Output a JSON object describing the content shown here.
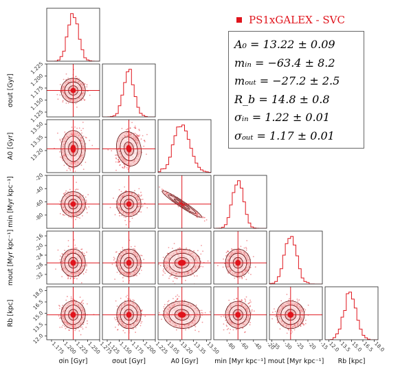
{
  "chart_data": {
    "type": "scatter",
    "subtype": "corner-plot",
    "legend": {
      "label": "PS1xGALEX - SVC",
      "color": "#e0141c",
      "placement": "top-right"
    },
    "results": [
      "A₀ = 13.22 ± 0.09",
      "mᵢₙ = −63.4 ± 8.2",
      "mₒᵤₜ = −27.2 ± 2.5",
      "R_b = 14.8 ± 0.8",
      "σᵢₙ = 1.22 ± 0.01",
      "σₒᵤₜ = 1.17 ± 0.01"
    ],
    "parameters": [
      {
        "name": "sigma_in",
        "xlabel": "σin [Gyr]",
        "ylabel": "",
        "range": [
          1.165,
          1.275
        ],
        "best": 1.22,
        "sd": 0.011,
        "ticks": [
          "1.175",
          "1.200",
          "1.225",
          "1.250",
          "1.275"
        ]
      },
      {
        "name": "sigma_out",
        "xlabel": "σout [Gyr]",
        "ylabel": "σout [Gyr]",
        "range": [
          1.115,
          1.225
        ],
        "best": 1.17,
        "sd": 0.011,
        "ticks": [
          "1.125",
          "1.150",
          "1.175",
          "1.200",
          "1.225"
        ]
      },
      {
        "name": "A0",
        "xlabel": "A0 [Gyr]",
        "ylabel": "A0 [Gyr]",
        "range": [
          12.95,
          13.55
        ],
        "best": 13.22,
        "sd": 0.09,
        "ticks": [
          "13.05",
          "13.20",
          "13.35",
          "13.50"
        ]
      },
      {
        "name": "m_in",
        "xlabel": "min [Myr kpc⁻¹]",
        "ylabel": "min [Myr kpc⁻¹]",
        "range": [
          -100,
          -20
        ],
        "best": -63.4,
        "sd": 8.2,
        "ticks": [
          "-80",
          "-60",
          "-40",
          "-20"
        ]
      },
      {
        "name": "m_out",
        "xlabel": "mout [Myr kpc⁻¹]",
        "ylabel": "mout [Myr kpc⁻¹]",
        "range": [
          -36,
          -14
        ],
        "best": -27.2,
        "sd": 2.5,
        "ticks": [
          "-35",
          "-30",
          "-25",
          "-20",
          "-15"
        ]
      },
      {
        "name": "R_b",
        "xlabel": "Rb [kpc]",
        "ylabel": "Rb [kpc]",
        "range": [
          11.5,
          18.5
        ],
        "best": 14.8,
        "sd": 0.8,
        "ticks": [
          "12.0",
          "13.5",
          "15.0",
          "16.5",
          "18.0"
        ]
      }
    ],
    "ylabel_ticks": {
      "sigma_out": [
        "1.125",
        "1.150",
        "1.175",
        "1.200",
        "1.225"
      ],
      "A0": [
        "13.20",
        "13.35",
        "13.50"
      ],
      "m_in": [
        "-80",
        "-60",
        "-40",
        "-20"
      ],
      "m_out": [
        "-32",
        "-28",
        "-24",
        "-20",
        "-16"
      ],
      "R_b": [
        "12.0",
        "13.5",
        "15.0",
        "16.5",
        "18.0"
      ]
    },
    "correlations": {
      "A0|m_in": -0.97,
      "sigma_out|A0": 0.3,
      "A0|m_out": 0.15,
      "A0|R_b": -0.2,
      "m_in|R_b": 0.25
    }
  }
}
